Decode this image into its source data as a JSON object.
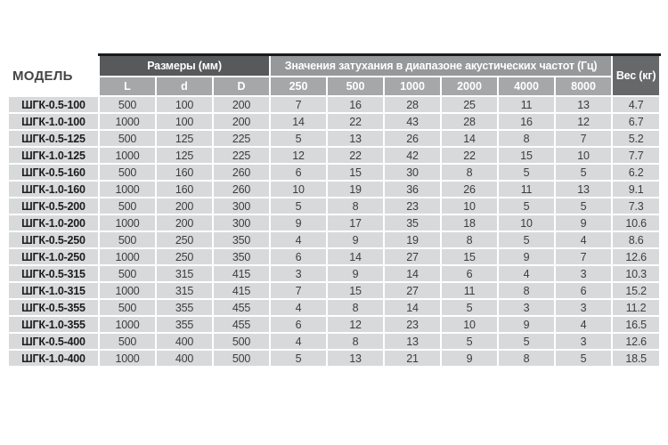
{
  "table": {
    "title_column_header": "МОДЕЛЬ",
    "groups": {
      "dimensions": "Размеры (мм)",
      "attenuation": "Значения затухания в диапазоне акустических частот (Гц)",
      "weight": "Вес (кг)"
    },
    "dimension_columns": [
      "L",
      "d",
      "D"
    ],
    "frequency_columns": [
      "250",
      "500",
      "1000",
      "2000",
      "4000",
      "8000"
    ],
    "rows": [
      {
        "model": "ШГК-0.5-100",
        "L": "500",
        "d": "100",
        "D": "200",
        "attenuation": [
          "7",
          "16",
          "28",
          "25",
          "11",
          "13"
        ],
        "weight": "4.7"
      },
      {
        "model": "ШГК-1.0-100",
        "L": "1000",
        "d": "100",
        "D": "200",
        "attenuation": [
          "14",
          "22",
          "43",
          "28",
          "16",
          "12"
        ],
        "weight": "6.7"
      },
      {
        "model": "ШГК-0.5-125",
        "L": "500",
        "d": "125",
        "D": "225",
        "attenuation": [
          "5",
          "13",
          "26",
          "14",
          "8",
          "7"
        ],
        "weight": "5.2"
      },
      {
        "model": "ШГК-1.0-125",
        "L": "1000",
        "d": "125",
        "D": "225",
        "attenuation": [
          "12",
          "22",
          "42",
          "22",
          "15",
          "10"
        ],
        "weight": "7.7"
      },
      {
        "model": "ШГК-0.5-160",
        "L": "500",
        "d": "160",
        "D": "260",
        "attenuation": [
          "6",
          "15",
          "30",
          "8",
          "5",
          "5"
        ],
        "weight": "6.2"
      },
      {
        "model": "ШГК-1.0-160",
        "L": "1000",
        "d": "160",
        "D": "260",
        "attenuation": [
          "10",
          "19",
          "36",
          "26",
          "11",
          "13"
        ],
        "weight": "9.1"
      },
      {
        "model": "ШГК-0.5-200",
        "L": "500",
        "d": "200",
        "D": "300",
        "attenuation": [
          "5",
          "8",
          "23",
          "10",
          "5",
          "5"
        ],
        "weight": "7.3"
      },
      {
        "model": "ШГК-1.0-200",
        "L": "1000",
        "d": "200",
        "D": "300",
        "attenuation": [
          "9",
          "17",
          "35",
          "18",
          "10",
          "9"
        ],
        "weight": "10.6"
      },
      {
        "model": "ШГК-0.5-250",
        "L": "500",
        "d": "250",
        "D": "350",
        "attenuation": [
          "4",
          "9",
          "19",
          "8",
          "5",
          "4"
        ],
        "weight": "8.6"
      },
      {
        "model": "ШГК-1.0-250",
        "L": "1000",
        "d": "250",
        "D": "350",
        "attenuation": [
          "6",
          "14",
          "27",
          "15",
          "9",
          "7"
        ],
        "weight": "12.6"
      },
      {
        "model": "ШГК-0.5-315",
        "L": "500",
        "d": "315",
        "D": "415",
        "attenuation": [
          "3",
          "9",
          "14",
          "6",
          "4",
          "3"
        ],
        "weight": "10.3"
      },
      {
        "model": "ШГК-1.0-315",
        "L": "1000",
        "d": "315",
        "D": "415",
        "attenuation": [
          "7",
          "15",
          "27",
          "11",
          "8",
          "6"
        ],
        "weight": "15.2"
      },
      {
        "model": "ШГК-0.5-355",
        "L": "500",
        "d": "355",
        "D": "455",
        "attenuation": [
          "4",
          "8",
          "14",
          "5",
          "3",
          "3"
        ],
        "weight": "11.2"
      },
      {
        "model": "ШГК-1.0-355",
        "L": "1000",
        "d": "355",
        "D": "455",
        "attenuation": [
          "6",
          "12",
          "23",
          "10",
          "9",
          "4"
        ],
        "weight": "16.5"
      },
      {
        "model": "ШГК-0.5-400",
        "L": "500",
        "d": "400",
        "D": "500",
        "attenuation": [
          "4",
          "8",
          "13",
          "5",
          "5",
          "3"
        ],
        "weight": "12.6"
      },
      {
        "model": "ШГК-1.0-400",
        "L": "1000",
        "d": "400",
        "D": "500",
        "attenuation": [
          "5",
          "13",
          "21",
          "9",
          "8",
          "5"
        ],
        "weight": "18.5"
      }
    ],
    "colors": {
      "header_dark": "#58595b",
      "header_attenuation": "#97989a",
      "header_weight": "#67686a",
      "header_sub": "#a6a7a9",
      "cell_background": "#d8d9da",
      "top_line": "#1a1a1a",
      "page_background": "#ffffff"
    }
  }
}
